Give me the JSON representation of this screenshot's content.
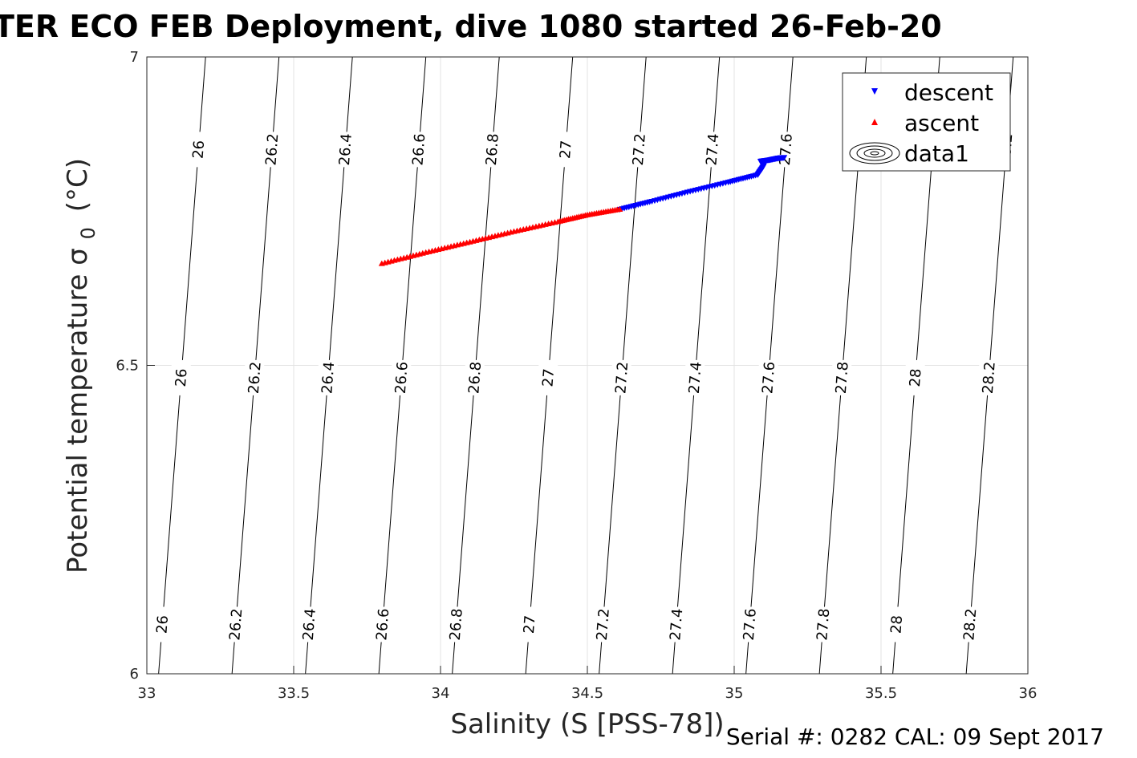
{
  "chart_data": {
    "type": "scatter",
    "title": "TER ECO FEB Deployment, dive 1080 started 26-Feb-20",
    "xlabel": "Salinity (S [PSS-78])",
    "ylabel_main": "Potential temperature σ",
    "ylabel_sub": "0",
    "ylabel_unit": "(°C)",
    "xlim": [
      33,
      36
    ],
    "ylim": [
      6,
      7
    ],
    "xticks": [
      "33",
      "33.5",
      "34",
      "34.5",
      "35",
      "35.5",
      "36"
    ],
    "yticks": [
      "6",
      "6.5",
      "7"
    ],
    "grid": true,
    "legend_position": "top-right",
    "legend": [
      {
        "label": "descent",
        "marker": "triangle-down",
        "color": "#0000ff"
      },
      {
        "label": "ascent",
        "marker": "triangle-up",
        "color": "#ff0000"
      },
      {
        "label": "data1",
        "marker": "contour-ellipses",
        "color": "#000000"
      }
    ],
    "series": [
      {
        "name": "descent",
        "color": "#0000ff",
        "marker": "triangle-down",
        "x": [
          34.61,
          34.72,
          34.85,
          34.98,
          35.08,
          35.1,
          35.09,
          35.12,
          35.15,
          35.17
        ],
        "y": [
          6.753,
          6.766,
          6.782,
          6.797,
          6.809,
          6.823,
          6.831,
          6.833,
          6.836,
          6.837
        ]
      },
      {
        "name": "ascent",
        "color": "#ff0000",
        "marker": "triangle-up",
        "x": [
          33.8,
          33.95,
          34.1,
          34.25,
          34.4,
          34.5,
          34.61
        ],
        "y": [
          6.665,
          6.683,
          6.7,
          6.717,
          6.733,
          6.744,
          6.753
        ]
      }
    ],
    "contours": [
      {
        "level": "26",
        "s7": 33.2,
        "s6": 33.04,
        "label_rows": [
          0,
          1,
          2
        ]
      },
      {
        "level": "26.2",
        "s7": 33.45,
        "s6": 33.29,
        "label_rows": [
          0,
          1,
          2
        ]
      },
      {
        "level": "26.4",
        "s7": 33.7,
        "s6": 33.54,
        "label_rows": [
          0,
          1,
          2
        ]
      },
      {
        "level": "26.6",
        "s7": 33.95,
        "s6": 33.79,
        "label_rows": [
          0,
          1,
          2
        ]
      },
      {
        "level": "26.8",
        "s7": 34.2,
        "s6": 34.04,
        "label_rows": [
          0,
          1,
          2
        ]
      },
      {
        "level": "27",
        "s7": 34.45,
        "s6": 34.29,
        "label_rows": [
          0,
          1,
          2
        ]
      },
      {
        "level": "27.2",
        "s7": 34.7,
        "s6": 34.54,
        "label_rows": [
          0,
          1,
          2
        ]
      },
      {
        "level": "27.4",
        "s7": 34.95,
        "s6": 34.79,
        "label_rows": [
          0,
          1,
          2
        ]
      },
      {
        "level": "27.6",
        "s7": 35.2,
        "s6": 35.04,
        "label_rows": [
          0,
          1,
          2
        ]
      },
      {
        "level": "27.8",
        "s7": 35.45,
        "s6": 35.29,
        "label_rows": [
          1,
          2
        ]
      },
      {
        "level": "28",
        "s7": 35.7,
        "s6": 35.54,
        "label_rows": [
          1,
          2
        ]
      },
      {
        "level": "28.2",
        "s7": 35.95,
        "s6": 35.79,
        "label_rows": [
          0,
          1,
          2
        ]
      }
    ],
    "contour_label_rows_temp": [
      6.85,
      6.48,
      6.08
    ]
  },
  "footer": {
    "serial_cal": "Serial #: 0282  CAL: 09 Sept 2017"
  }
}
